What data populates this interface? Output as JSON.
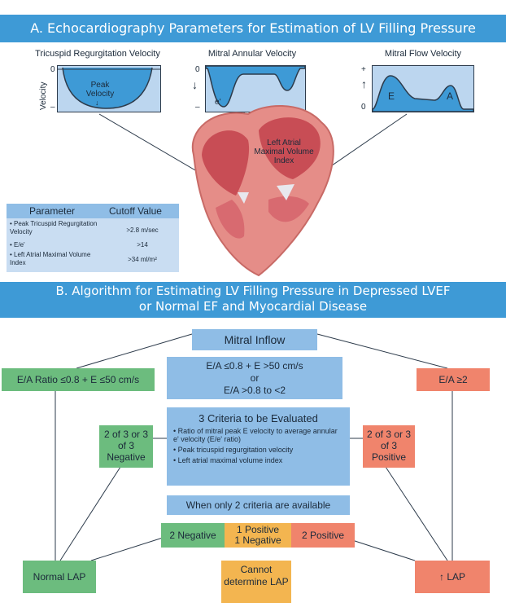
{
  "sectionA": {
    "title": "A. Echocardiography Parameters for Estimation of LV Filling Pressure",
    "graph_tr": {
      "title": "Tricuspid Regurgitation Velocity",
      "y_axis": "Velocity",
      "tick_top": "0",
      "tick_bottom": "–",
      "label": "Peak Velocity"
    },
    "graph_ma": {
      "title": "Mitral Annular Velocity",
      "tick_top": "0",
      "tick_bottom": "–",
      "label": "e'"
    },
    "graph_mf": {
      "title": "Mitral Flow Velocity",
      "tick_top": "+",
      "tick_bottom": "0",
      "label_e": "E",
      "label_a": "A"
    },
    "heart_label": "Left Atrial Maximal Volume Index",
    "table": {
      "header_param": "Parameter",
      "header_cutoff": "Cutoff Value",
      "rows": [
        {
          "param": "• Peak Tricuspid Regurgitation Velocity",
          "value": ">2.8 m/sec"
        },
        {
          "param": "• E/e'",
          "value": ">14"
        },
        {
          "param": "• Left Atrial Maximal Volume Index",
          "value": ">34 ml/m²"
        }
      ]
    }
  },
  "sectionB": {
    "title_line1": "B. Algorithm for Estimating LV Filling Pressure in Depressed LVEF",
    "title_line2": "or Normal EF and Myocardial Disease",
    "mitral_inflow": "Mitral Inflow",
    "ea_low": "E/A Ratio ≤0.8 + E ≤50 cm/s",
    "ea_mid_1": "E/A ≤0.8 + E >50 cm/s",
    "ea_mid_2": "or",
    "ea_mid_3": "E/A >0.8 to <2",
    "ea_high": "E/A ≥2",
    "criteria_title": "3 Criteria to be Evaluated",
    "criteria": [
      "• Ratio of mitral peak E velocity to average annular e' velocity (E/e' ratio)",
      "• Peak tricuspid regurgitation velocity",
      "• Left atrial maximal volume index"
    ],
    "neg_box": "2 of 3 or 3 of 3 Negative",
    "pos_box": "2 of 3 or 3 of 3 Positive",
    "only_two": "When only 2 criteria are available",
    "two_negative": "2 Negative",
    "one_pos_1": "1 Positive",
    "one_pos_2": "1 Negative",
    "two_positive": "2 Positive",
    "normal_lap": "Normal LAP",
    "cannot_determine": "Cannot determine LAP",
    "high_lap": "↑ LAP"
  }
}
